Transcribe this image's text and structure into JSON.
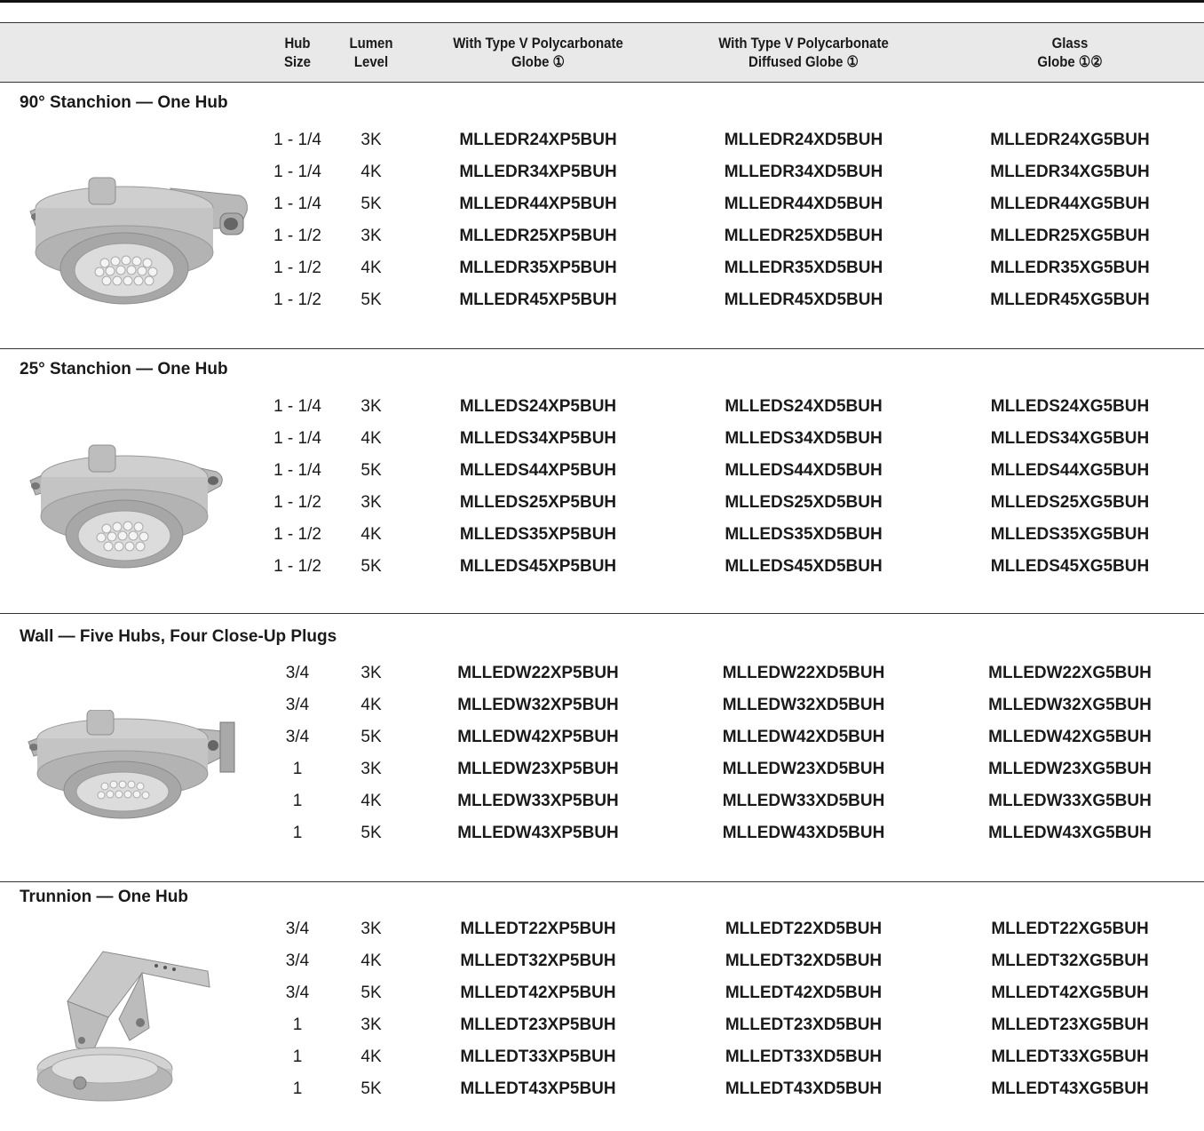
{
  "header": {
    "hub": [
      "Hub",
      "Size"
    ],
    "lumen": [
      "Lumen",
      "Level"
    ],
    "col1": [
      "With Type V Polycarbonate",
      "Globe ①"
    ],
    "col2": [
      "With Type V Polycarbonate",
      "Diffused Globe ①"
    ],
    "col3": [
      "Glass",
      "Globe ①②"
    ]
  },
  "sections": [
    {
      "title": "90° Stanchion — One Hub",
      "rows": [
        [
          "1 - 1/4",
          "3K",
          "MLLEDR24XP5BUH",
          "MLLEDR24XD5BUH",
          "MLLEDR24XG5BUH"
        ],
        [
          "1 - 1/4",
          "4K",
          "MLLEDR34XP5BUH",
          "MLLEDR34XD5BUH",
          "MLLEDR34XG5BUH"
        ],
        [
          "1 - 1/4",
          "5K",
          "MLLEDR44XP5BUH",
          "MLLEDR44XD5BUH",
          "MLLEDR44XG5BUH"
        ],
        [
          "1 - 1/2",
          "3K",
          "MLLEDR25XP5BUH",
          "MLLEDR25XD5BUH",
          "MLLEDR25XG5BUH"
        ],
        [
          "1 - 1/2",
          "4K",
          "MLLEDR35XP5BUH",
          "MLLEDR35XD5BUH",
          "MLLEDR35XG5BUH"
        ],
        [
          "1 - 1/2",
          "5K",
          "MLLEDR45XP5BUH",
          "MLLEDR45XD5BUH",
          "MLLEDR45XG5BUH"
        ]
      ]
    },
    {
      "title": "25° Stanchion — One Hub",
      "rows": [
        [
          "1 - 1/4",
          "3K",
          "MLLEDS24XP5BUH",
          "MLLEDS24XD5BUH",
          "MLLEDS24XG5BUH"
        ],
        [
          "1 - 1/4",
          "4K",
          "MLLEDS34XP5BUH",
          "MLLEDS34XD5BUH",
          "MLLEDS34XG5BUH"
        ],
        [
          "1 - 1/4",
          "5K",
          "MLLEDS44XP5BUH",
          "MLLEDS44XD5BUH",
          "MLLEDS44XG5BUH"
        ],
        [
          "1 - 1/2",
          "3K",
          "MLLEDS25XP5BUH",
          "MLLEDS25XD5BUH",
          "MLLEDS25XG5BUH"
        ],
        [
          "1 - 1/2",
          "4K",
          "MLLEDS35XP5BUH",
          "MLLEDS35XD5BUH",
          "MLLEDS35XG5BUH"
        ],
        [
          "1 - 1/2",
          "5K",
          "MLLEDS45XP5BUH",
          "MLLEDS45XD5BUH",
          "MLLEDS45XG5BUH"
        ]
      ]
    },
    {
      "title": "Wall — Five Hubs, Four Close-Up Plugs",
      "rows": [
        [
          "3/4",
          "3K",
          "MLLEDW22XP5BUH",
          "MLLEDW22XD5BUH",
          "MLLEDW22XG5BUH"
        ],
        [
          "3/4",
          "4K",
          "MLLEDW32XP5BUH",
          "MLLEDW32XD5BUH",
          "MLLEDW32XG5BUH"
        ],
        [
          "3/4",
          "5K",
          "MLLEDW42XP5BUH",
          "MLLEDW42XD5BUH",
          "MLLEDW42XG5BUH"
        ],
        [
          "1",
          "3K",
          "MLLEDW23XP5BUH",
          "MLLEDW23XD5BUH",
          "MLLEDW23XG5BUH"
        ],
        [
          "1",
          "4K",
          "MLLEDW33XP5BUH",
          "MLLEDW33XD5BUH",
          "MLLEDW33XG5BUH"
        ],
        [
          "1",
          "5K",
          "MLLEDW43XP5BUH",
          "MLLEDW43XD5BUH",
          "MLLEDW43XG5BUH"
        ]
      ]
    },
    {
      "title": "Trunnion — One Hub",
      "rows": [
        [
          "3/4",
          "3K",
          "MLLEDT22XP5BUH",
          "MLLEDT22XD5BUH",
          "MLLEDT22XG5BUH"
        ],
        [
          "3/4",
          "4K",
          "MLLEDT32XP5BUH",
          "MLLEDT32XD5BUH",
          "MLLEDT32XG5BUH"
        ],
        [
          "3/4",
          "5K",
          "MLLEDT42XP5BUH",
          "MLLEDT42XD5BUH",
          "MLLEDT42XG5BUH"
        ],
        [
          "1",
          "3K",
          "MLLEDT23XP5BUH",
          "MLLEDT23XD5BUH",
          "MLLEDT23XG5BUH"
        ],
        [
          "1",
          "4K",
          "MLLEDT33XP5BUH",
          "MLLEDT33XD5BUH",
          "MLLEDT33XG5BUH"
        ],
        [
          "1",
          "5K",
          "MLLEDT43XP5BUH",
          "MLLEDT43XD5BUH",
          "MLLEDT43XG5BUH"
        ]
      ]
    }
  ]
}
